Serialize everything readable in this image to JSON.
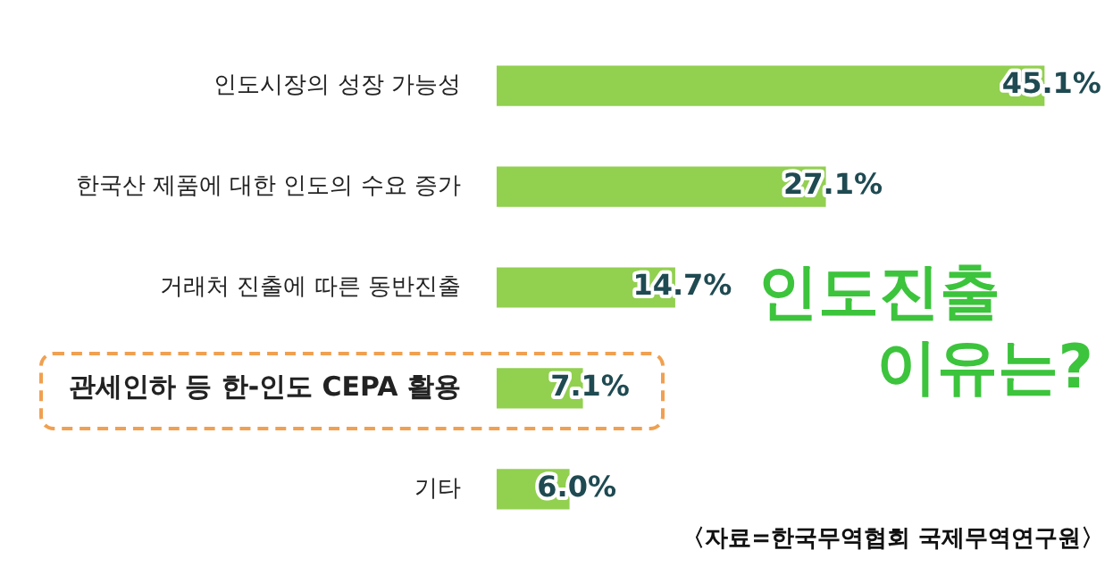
{
  "chart_data": {
    "type": "bar",
    "orientation": "horizontal",
    "categories": [
      "인도시장의 성장 가능성",
      "한국산 제품에 대한 인도의 수요 증가",
      "거래처 진출에 따른 동반진출",
      "관세인하 등 한-인도 CEPA 활용",
      "기타"
    ],
    "values": [
      45.1,
      27.1,
      14.7,
      7.1,
      6.0
    ],
    "value_labels": [
      "45.1%",
      "27.1%",
      "14.7%",
      "7.1%",
      "6.0%"
    ],
    "color": "#92d050",
    "tick_labels": "y",
    "grid": false,
    "legend": false,
    "annotations": [
      "인도진출\n이유는?",
      "〈자료=한국무역협회 국제무역연구원〉"
    ]
  }
}
